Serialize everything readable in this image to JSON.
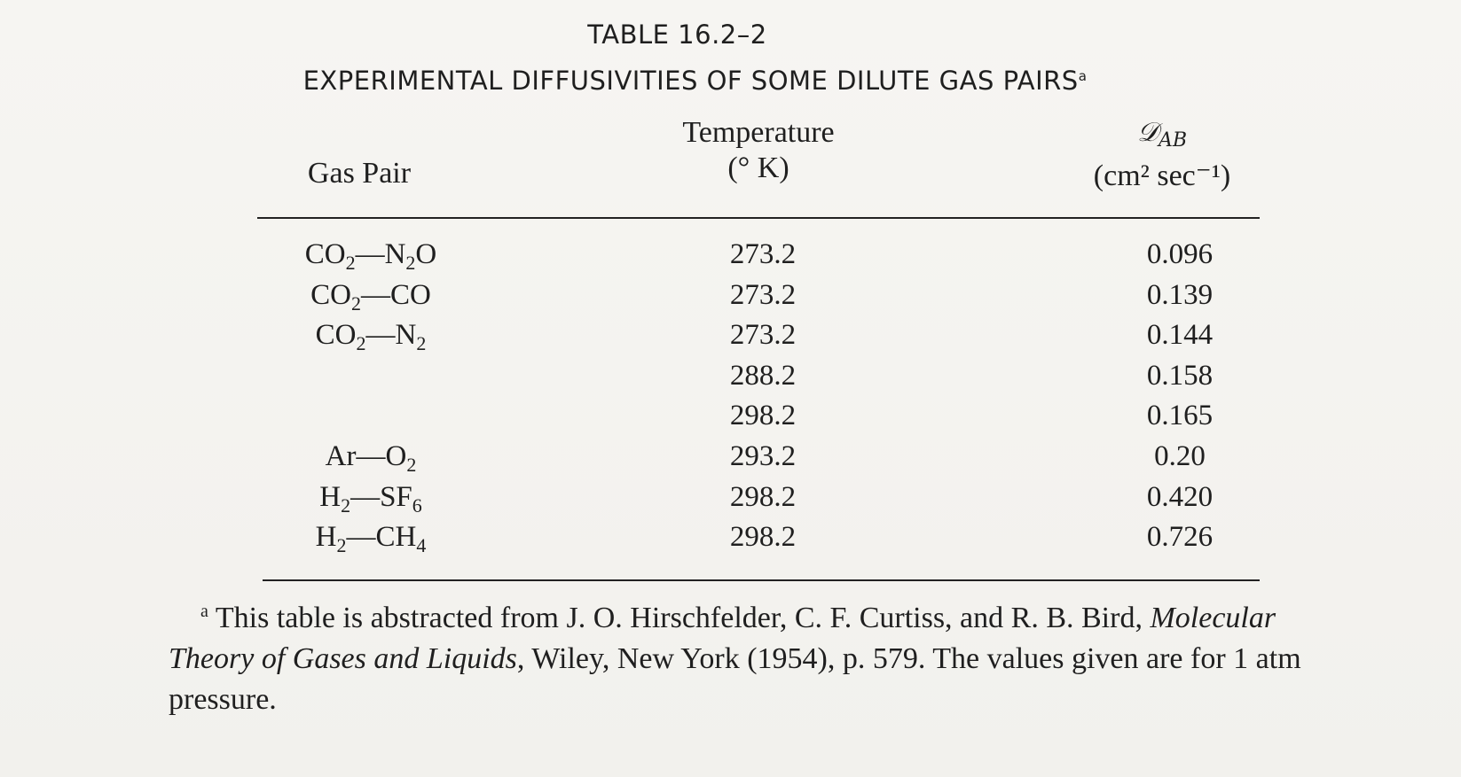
{
  "table": {
    "number": "TABLE 16.2–2",
    "title": "EXPERIMENTAL DIFFUSIVITIES OF SOME DILUTE GAS PAIRS",
    "title_mark": "a",
    "headers": {
      "gas_pair": "Gas Pair",
      "temperature_line1": "Temperature",
      "temperature_line2": "(° K)",
      "diffusivity_symbol": "𝒟",
      "diffusivity_subscript": "AB",
      "diffusivity_units": "(cm² sec⁻¹)"
    },
    "rows": [
      {
        "gas": [
          {
            "t": "CO"
          },
          {
            "s": "2"
          },
          {
            "t": "—N"
          },
          {
            "s": "2"
          },
          {
            "t": "O"
          }
        ],
        "temperature": "273.2",
        "diffusivity": "0.096"
      },
      {
        "gas": [
          {
            "t": "CO"
          },
          {
            "s": "2"
          },
          {
            "t": "—CO"
          }
        ],
        "temperature": "273.2",
        "diffusivity": "0.139"
      },
      {
        "gas": [
          {
            "t": "CO"
          },
          {
            "s": "2"
          },
          {
            "t": "—N"
          },
          {
            "s": "2"
          }
        ],
        "temperature": "273.2",
        "diffusivity": "0.144"
      },
      {
        "gas": [],
        "temperature": "288.2",
        "diffusivity": "0.158"
      },
      {
        "gas": [],
        "temperature": "298.2",
        "diffusivity": "0.165"
      },
      {
        "gas": [
          {
            "t": "Ar—O"
          },
          {
            "s": "2"
          }
        ],
        "temperature": "293.2",
        "diffusivity": "0.20"
      },
      {
        "gas": [
          {
            "t": "H"
          },
          {
            "s": "2"
          },
          {
            "t": "—SF"
          },
          {
            "s": "6"
          }
        ],
        "temperature": "298.2",
        "diffusivity": "0.420"
      },
      {
        "gas": [
          {
            "t": "H"
          },
          {
            "s": "2"
          },
          {
            "t": "—CH"
          },
          {
            "s": "4"
          }
        ],
        "temperature": "298.2",
        "diffusivity": "0.726"
      }
    ]
  },
  "footnote": {
    "mark": "a",
    "text_before": "This table is abstracted from J. O. Hirschfelder, C. F. Curtiss, and R. B. Bird,",
    "book_title": "Molecular Theory of Gases and Liquids",
    "text_after": ", Wiley, New York (1954), p. 579.  The values given are for 1 atm pressure."
  }
}
